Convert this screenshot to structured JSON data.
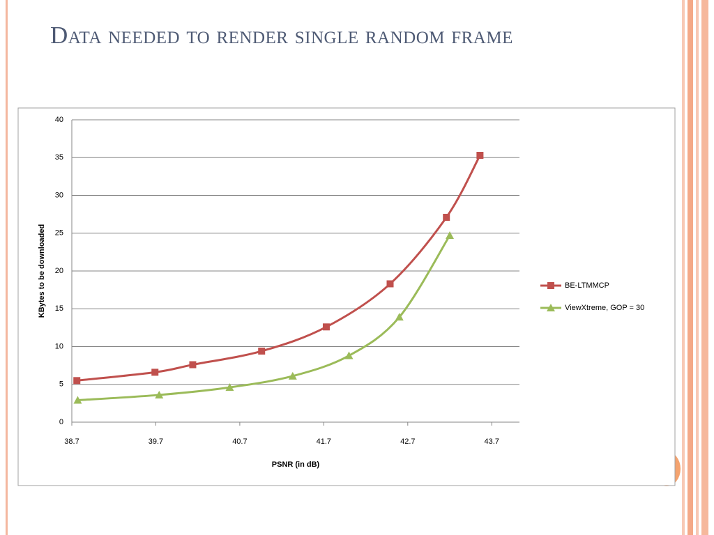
{
  "title": "Data needed to render single random frame",
  "chart_data": {
    "type": "line",
    "x_label": "PSNR (in dB)",
    "y_label": "KBytes to be downloaded",
    "xlim": [
      38.7,
      44.03
    ],
    "xticks": [
      38.7,
      39.7,
      40.7,
      41.7,
      42.7,
      43.7
    ],
    "ylim": [
      0,
      40
    ],
    "yticks": [
      0,
      5,
      10,
      15,
      20,
      25,
      30,
      35,
      40
    ],
    "grid": true,
    "legend": "right",
    "smooth": true,
    "series": [
      {
        "name": "BE-LTMMCP",
        "color": "#c0504d",
        "marker": "square",
        "x": [
          38.76,
          39.69,
          40.14,
          40.96,
          41.73,
          42.49,
          43.16,
          43.56
        ],
        "values": [
          5.5,
          6.6,
          7.6,
          9.4,
          12.6,
          18.3,
          27.1,
          35.3
        ]
      },
      {
        "name": "ViewXtreme, GOP = 30",
        "color": "#9bbb59",
        "marker": "triangle",
        "x": [
          38.77,
          39.74,
          40.58,
          41.33,
          42.0,
          42.6,
          43.2
        ],
        "values": [
          2.9,
          3.6,
          4.6,
          6.1,
          8.8,
          13.9,
          24.7
        ]
      }
    ]
  }
}
